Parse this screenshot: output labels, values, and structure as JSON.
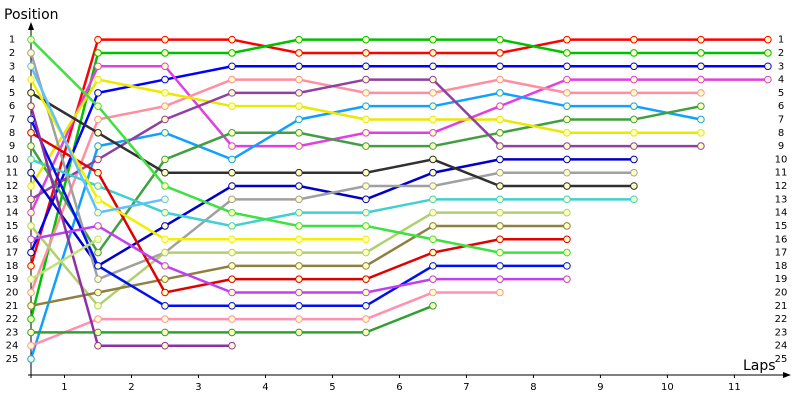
{
  "chart_data": {
    "type": "line",
    "y_label": "Position",
    "x_label": "Laps",
    "x": [
      0,
      1,
      2,
      3,
      4,
      5,
      6,
      7,
      8,
      9,
      10,
      11
    ],
    "xlim": [
      0,
      11.3
    ],
    "xticks": [
      {
        "value": 0.5,
        "label": "1"
      },
      {
        "value": 1.5,
        "label": "2"
      },
      {
        "value": 2.5,
        "label": "3"
      },
      {
        "value": 3.5,
        "label": "4"
      },
      {
        "value": 4.5,
        "label": "5"
      },
      {
        "value": 5.5,
        "label": "6"
      },
      {
        "value": 6.5,
        "label": "7"
      },
      {
        "value": 7.5,
        "label": "8"
      },
      {
        "value": 8.5,
        "label": "9"
      },
      {
        "value": 9.5,
        "label": "10"
      },
      {
        "value": 10.5,
        "label": "11"
      }
    ],
    "ylim": [
      26.2,
      -0.1
    ],
    "yticks": [
      1,
      2,
      3,
      4,
      5,
      6,
      7,
      8,
      9,
      10,
      11,
      12,
      13,
      14,
      15,
      16,
      17,
      18,
      19,
      20,
      21,
      22,
      23,
      24,
      25
    ],
    "series": [
      {
        "color": "#ff0000",
        "values": [
          18,
          1,
          1,
          1,
          2,
          2,
          2,
          2,
          1,
          1,
          1,
          1
        ]
      },
      {
        "color": "#00c000",
        "values": [
          22,
          2,
          2,
          2,
          1,
          1,
          1,
          1,
          2,
          2,
          2,
          2
        ]
      },
      {
        "color": "#0000ff",
        "values": [
          17,
          5,
          4,
          3,
          3,
          3,
          3,
          3,
          3,
          3,
          3,
          3
        ]
      },
      {
        "color": "#e040e0",
        "values": [
          14,
          3,
          3,
          9,
          9,
          8,
          8,
          6,
          4,
          4,
          4,
          4
        ]
      },
      {
        "color": "#ff8fa0",
        "values": [
          20,
          7,
          6,
          4,
          4,
          5,
          5,
          4,
          5,
          5,
          5,
          null
        ]
      },
      {
        "color": "#10a0ff",
        "values": [
          25,
          9,
          8,
          10,
          7,
          6,
          6,
          5,
          6,
          6,
          7,
          null
        ]
      },
      {
        "color": "#40a040",
        "values": [
          9,
          17,
          10,
          8,
          8,
          9,
          9,
          8,
          7,
          7,
          6,
          null
        ]
      },
      {
        "color": "#e8e800",
        "values": [
          12,
          4,
          5,
          6,
          6,
          7,
          7,
          7,
          8,
          8,
          8,
          null
        ]
      },
      {
        "color": "#9040a0",
        "values": [
          13,
          10,
          7,
          5,
          5,
          4,
          4,
          9,
          9,
          9,
          9,
          null
        ]
      },
      {
        "color": "#0000c8",
        "values": [
          11,
          18,
          15,
          12,
          12,
          13,
          11,
          10,
          10,
          10,
          null,
          null
        ]
      },
      {
        "color": "#a0a0a0",
        "values": [
          2,
          19,
          17,
          13,
          13,
          12,
          12,
          11,
          11,
          11,
          null,
          null
        ]
      },
      {
        "color": "#303030",
        "values": [
          5,
          8,
          11,
          11,
          11,
          11,
          10,
          12,
          12,
          12,
          null,
          null
        ]
      },
      {
        "color": "#40d0d0",
        "values": [
          10,
          12,
          14,
          15,
          14,
          14,
          13,
          13,
          13,
          13,
          null,
          null
        ]
      },
      {
        "color": "#b0d070",
        "values": [
          15,
          21,
          17,
          17,
          17,
          17,
          14,
          14,
          14,
          null,
          null,
          null
        ]
      },
      {
        "color": "#908040",
        "values": [
          21,
          20,
          19,
          18,
          18,
          18,
          15,
          15,
          15,
          null,
          null,
          null
        ]
      },
      {
        "color": "#e00000",
        "values": [
          8,
          11,
          20,
          19,
          19,
          19,
          17,
          16,
          16,
          null,
          null,
          null
        ]
      },
      {
        "color": "#40e040",
        "values": [
          1,
          6,
          12,
          14,
          15,
          15,
          16,
          17,
          17,
          null,
          null,
          null
        ]
      },
      {
        "color": "#0010f0",
        "values": [
          7,
          18,
          21,
          21,
          21,
          21,
          18,
          18,
          18,
          null,
          null,
          null
        ]
      },
      {
        "color": "#c040f0",
        "values": [
          16,
          15,
          18,
          20,
          20,
          20,
          19,
          19,
          19,
          null,
          null,
          null
        ]
      },
      {
        "color": "#ff90b0",
        "values": [
          24,
          22,
          22,
          22,
          22,
          22,
          20,
          20,
          null,
          null,
          null,
          null
        ]
      },
      {
        "color": "#30a030",
        "values": [
          23,
          23,
          23,
          23,
          23,
          23,
          21,
          null,
          null,
          null,
          null,
          null
        ]
      },
      {
        "color": "#f0f000",
        "values": [
          4,
          13,
          16,
          16,
          16,
          16,
          null,
          null,
          null,
          null,
          null,
          null
        ]
      },
      {
        "color": "#9030a0",
        "values": [
          6,
          24,
          24,
          24,
          null,
          null,
          null,
          null,
          null,
          null,
          null,
          null
        ]
      },
      {
        "color": "#60c0ff",
        "values": [
          3,
          14,
          13,
          null,
          null,
          null,
          null,
          null,
          null,
          null,
          null,
          null
        ]
      },
      {
        "color": "#c0e080",
        "values": [
          19,
          16,
          null,
          null,
          null,
          null,
          null,
          null,
          null,
          null,
          null,
          null
        ]
      }
    ]
  }
}
